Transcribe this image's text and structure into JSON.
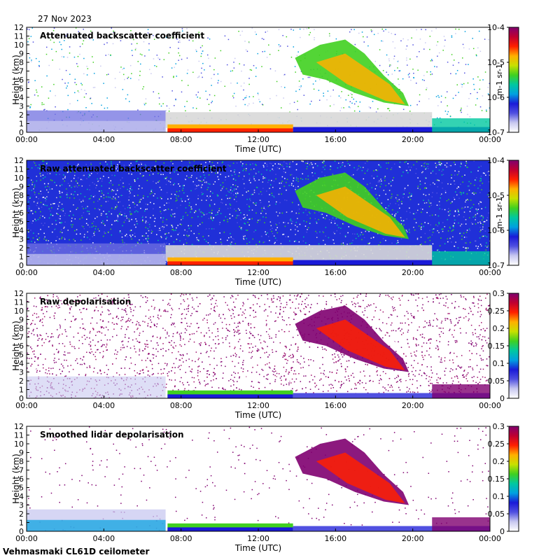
{
  "header": {
    "date": "27 Nov 2023"
  },
  "footer": {
    "instrument": "Vehmasmaki CL61D ceilometer"
  },
  "colors": {
    "background": "#ffffff",
    "no_data": "#d8d8d8",
    "colormap": [
      "#ffffff",
      "#c8c8f0",
      "#5050e0",
      "#1a1ad8",
      "#00a0e0",
      "#00c8a0",
      "#40d020",
      "#c8e000",
      "#ffb000",
      "#ff2000",
      "#c00030",
      "#800070"
    ]
  },
  "chart_data": [
    {
      "type": "heatmap",
      "title": "Attenuated backscatter coefficient",
      "xlabel": "Time (UTC)",
      "ylabel": "Height (km)",
      "x_ticks": [
        "00:00",
        "04:00",
        "08:00",
        "12:00",
        "16:00",
        "20:00",
        "00:00"
      ],
      "xlim_hours": [
        0,
        24
      ],
      "ylim": [
        0,
        12
      ],
      "y_ticks": [
        0,
        1,
        2,
        3,
        4,
        5,
        6,
        7,
        8,
        9,
        10,
        11,
        12
      ],
      "colorbar": {
        "scale": "log",
        "range": [
          1e-07,
          0.0001
        ],
        "ticks": [
          "10-7",
          "10-6",
          "10-5",
          "10-4"
        ],
        "unit": "m-1 sr-1"
      },
      "grid": false
    },
    {
      "type": "heatmap",
      "title": "Raw attenuated backscatter coefficient",
      "xlabel": "Time (UTC)",
      "ylabel": "Height (km)",
      "x_ticks": [
        "00:00",
        "04:00",
        "08:00",
        "12:00",
        "16:00",
        "20:00",
        "00:00"
      ],
      "xlim_hours": [
        0,
        24
      ],
      "ylim": [
        0,
        12
      ],
      "y_ticks": [
        0,
        1,
        2,
        3,
        4,
        5,
        6,
        7,
        8,
        9,
        10,
        11,
        12
      ],
      "colorbar": {
        "scale": "log",
        "range": [
          1e-07,
          0.0001
        ],
        "ticks": [
          "10-7",
          "10-6",
          "10-5",
          "10-4"
        ],
        "unit": "m-1 sr-1"
      },
      "grid": false
    },
    {
      "type": "heatmap",
      "title": "Raw depolarisation",
      "xlabel": "Time (UTC)",
      "ylabel": "Height (km)",
      "x_ticks": [
        "00:00",
        "04:00",
        "08:00",
        "12:00",
        "16:00",
        "20:00",
        "00:00"
      ],
      "xlim_hours": [
        0,
        24
      ],
      "ylim": [
        0,
        12
      ],
      "y_ticks": [
        0,
        1,
        2,
        3,
        4,
        5,
        6,
        7,
        8,
        9,
        10,
        11,
        12
      ],
      "colorbar": {
        "scale": "linear",
        "range": [
          0,
          0.3
        ],
        "ticks": [
          "0",
          "0.05",
          "0.1",
          "0.15",
          "0.2",
          "0.25",
          "0.3"
        ],
        "unit": ""
      },
      "grid": false
    },
    {
      "type": "heatmap",
      "title": "Smoothed lidar depolarisation",
      "xlabel": "Time (UTC)",
      "ylabel": "Height (km)",
      "x_ticks": [
        "00:00",
        "04:00",
        "08:00",
        "12:00",
        "16:00",
        "20:00",
        "00:00"
      ],
      "xlim_hours": [
        0,
        24
      ],
      "ylim": [
        0,
        12
      ],
      "y_ticks": [
        0,
        1,
        2,
        3,
        4,
        5,
        6,
        7,
        8,
        9,
        10,
        11,
        12
      ],
      "colorbar": {
        "scale": "linear",
        "range": [
          0,
          0.3
        ],
        "ticks": [
          "0",
          "0.05",
          "0.1",
          "0.15",
          "0.2",
          "0.25",
          "0.3"
        ],
        "unit": ""
      },
      "grid": false
    }
  ]
}
